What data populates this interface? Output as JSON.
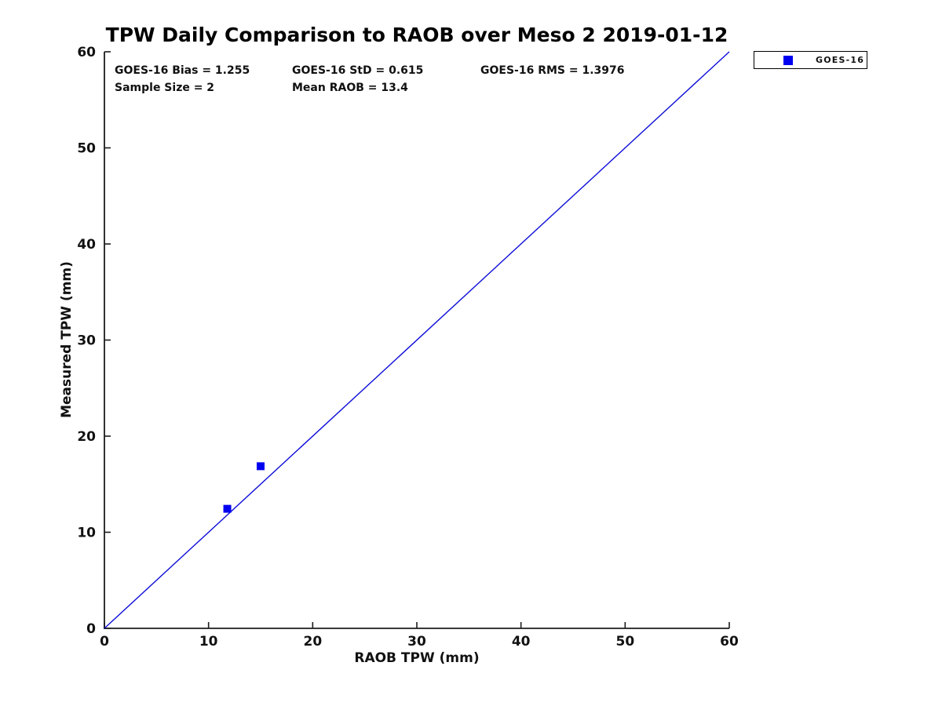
{
  "chart_data": {
    "type": "scatter",
    "title": "TPW Daily Comparison to RAOB over Meso 2 2019-01-12",
    "xlabel": "RAOB TPW (mm)",
    "ylabel": "Measured TPW (mm)",
    "xlim": [
      0,
      60
    ],
    "ylim": [
      0,
      60
    ],
    "xticks": [
      0,
      10,
      20,
      30,
      40,
      50,
      60
    ],
    "yticks": [
      0,
      10,
      20,
      30,
      40,
      50,
      60
    ],
    "grid": false,
    "series": [
      {
        "name": "GOES-16",
        "marker": "square",
        "color": "#0000f0",
        "points": [
          [
            11.8,
            12.44
          ],
          [
            15.0,
            16.87
          ]
        ]
      }
    ],
    "reference_line": {
      "name": "1:1 identity line",
      "from": [
        0,
        0
      ],
      "to": [
        60,
        60
      ],
      "color": "#0d0dd8",
      "style": "solid"
    },
    "legend": {
      "position": "outside-top-right",
      "entries": [
        {
          "label": "GOES-16",
          "marker": "square",
          "color": "#0000f0"
        }
      ]
    },
    "stats": {
      "bias": "GOES-16 Bias = 1.255",
      "std": "GOES-16 StD = 0.615",
      "rms": "GOES-16 RMS = 1.3976",
      "sample_size": "Sample Size = 2",
      "mean_raob": "Mean RAOB = 13.4"
    }
  },
  "colors": {
    "background": "#ffffff",
    "axis": "#1c1c1c",
    "text": "#111111",
    "marker": "#0000f0",
    "line": "#0d0dd8"
  }
}
